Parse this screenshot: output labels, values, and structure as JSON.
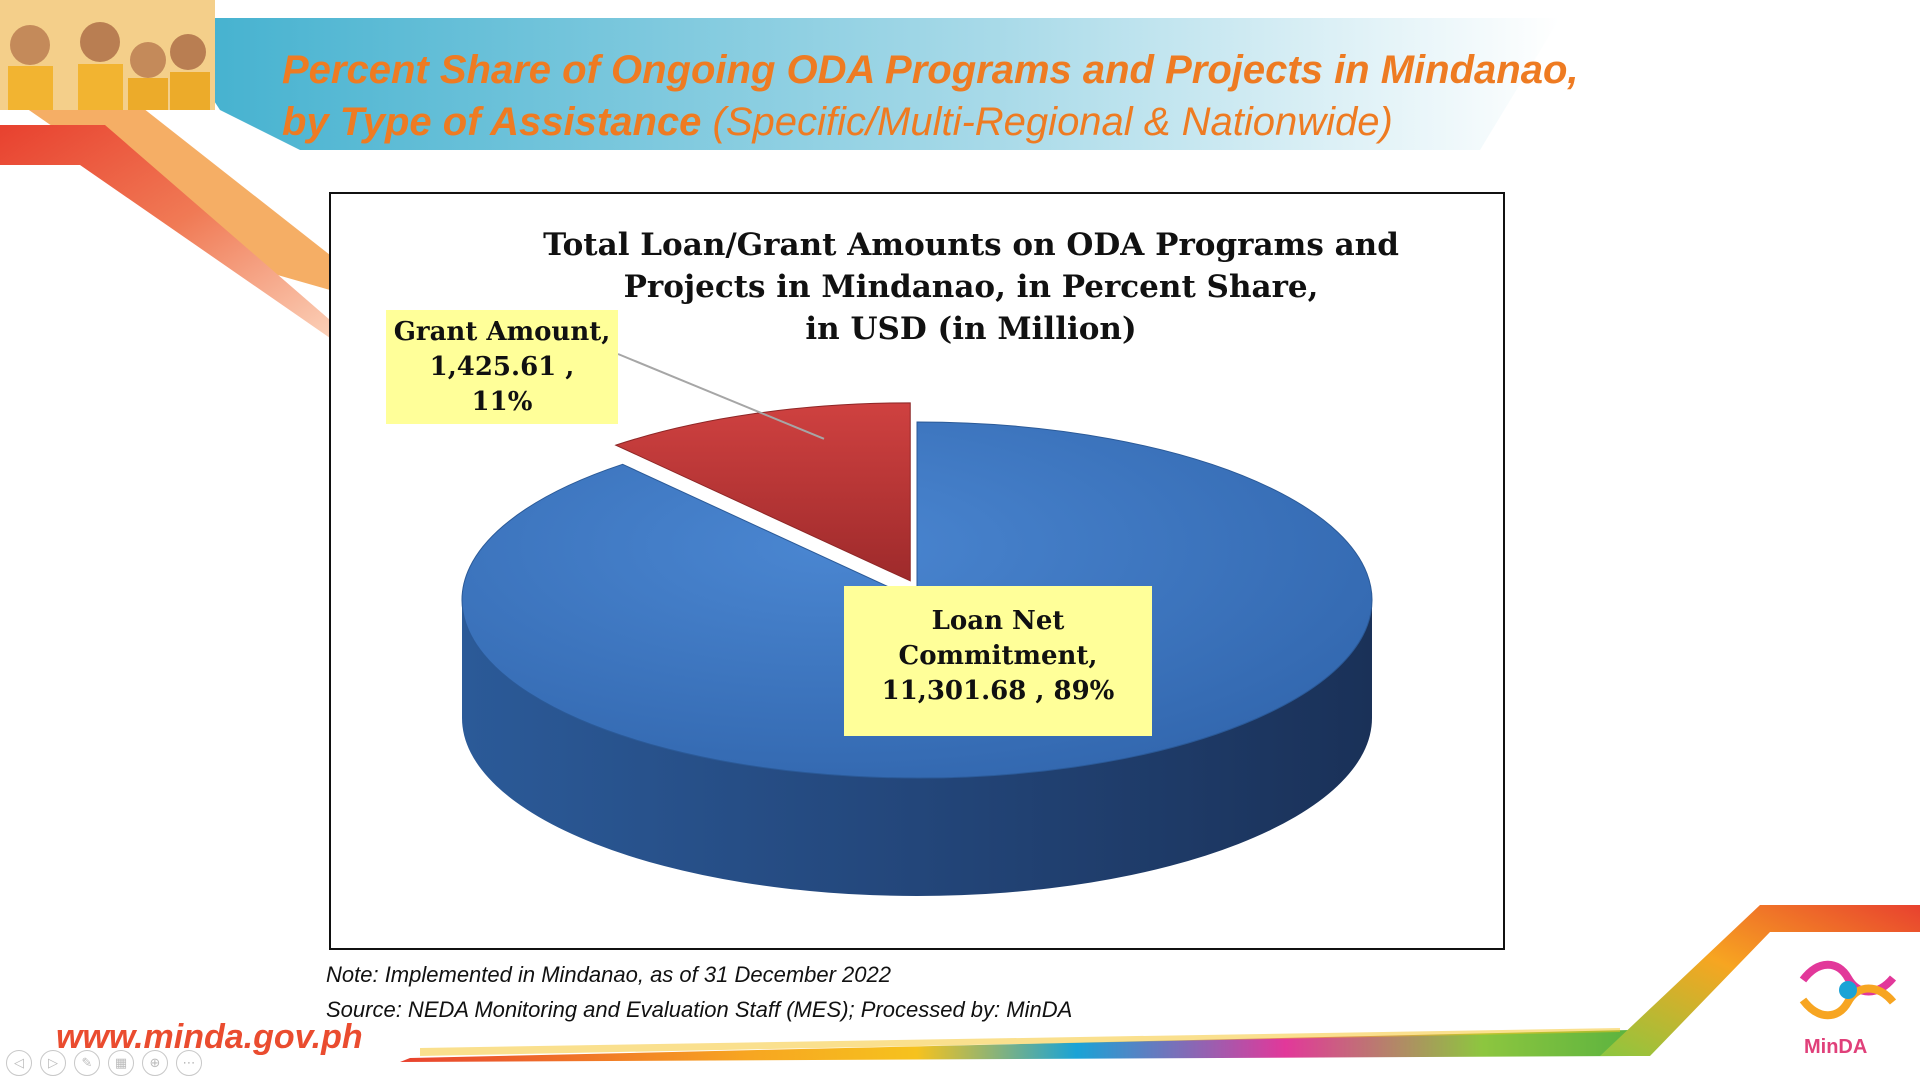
{
  "slide": {
    "heading_bold_line1": "Percent Share of Ongoing ODA Programs and Projects in Mindanao,",
    "heading_bold_line2": "by Type of Assistance",
    "heading_regular_line2": "(Specific/Multi-Regional & Nationwide)",
    "note": "Note: Implemented in Mindanao, as of 31 December 2022",
    "source": "Source: NEDA Monitoring and Evaluation Staff (MES);  Processed by: MinDA",
    "website": "www.minda.gov.ph",
    "logo_text": "MinDA",
    "colors": {
      "heading": "#ee7b22",
      "website": "#ea4c2f",
      "loan_slice": "#3a71bd",
      "grant_slice": "#c0393a",
      "label_fill": "#ffff99"
    },
    "slide_controls": [
      {
        "name": "previous-slide",
        "icon": "◁"
      },
      {
        "name": "next-slide",
        "icon": "▷"
      },
      {
        "name": "pen-tool",
        "icon": "✎"
      },
      {
        "name": "see-all-slides",
        "icon": "▦"
      },
      {
        "name": "zoom",
        "icon": "⊕"
      },
      {
        "name": "more-options",
        "icon": "⋯"
      }
    ]
  },
  "chart_data": {
    "type": "pie",
    "style": "3d-exploded",
    "title_lines": [
      "Total Loan/Grant Amounts on ODA Programs and",
      "Projects in Mindanao, in Percent Share,",
      "in USD (in Million)"
    ],
    "slices": [
      {
        "name": "Loan Net Commitment",
        "value": 11301.68,
        "percent": 89,
        "label_lines": [
          "Loan Net",
          "Commitment,",
          "11,301.68 , 89%"
        ]
      },
      {
        "name": "Grant Amount",
        "value": 1425.61,
        "percent": 11,
        "label_lines": [
          "Grant Amount,",
          "1,425.61 ,",
          "11%"
        ]
      }
    ]
  }
}
